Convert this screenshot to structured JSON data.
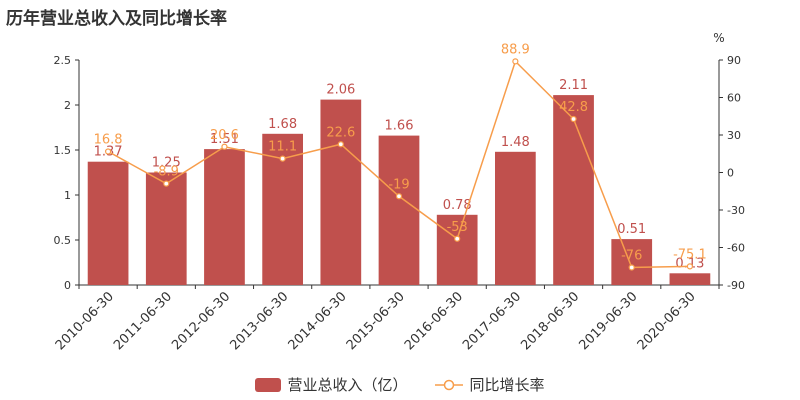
{
  "title": "历年营业总收入及同比增长率",
  "colors": {
    "bar": "#c0504d",
    "line": "#f79d4b",
    "axis": "#333333",
    "grid": "#e8e8e8"
  },
  "legend": {
    "bar_label": "营业总收入（亿）",
    "line_label": "同比增长率"
  },
  "chart_data": {
    "type": "bar",
    "categories": [
      "2010-06-30",
      "2011-06-30",
      "2012-06-30",
      "2013-06-30",
      "2014-06-30",
      "2015-06-30",
      "2016-06-30",
      "2017-06-30",
      "2018-06-30",
      "2019-06-30",
      "2020-06-30"
    ],
    "series": [
      {
        "name": "营业总收入（亿）",
        "type": "bar",
        "axis": "left",
        "values": [
          1.37,
          1.25,
          1.51,
          1.68,
          2.06,
          1.66,
          0.78,
          1.48,
          2.11,
          0.51,
          0.13
        ],
        "labels": [
          "1.37",
          "1.25",
          "1.51",
          "1.68",
          "2.06",
          "1.66",
          "0.78",
          "1.48",
          "2.11",
          "0.51",
          "0.13"
        ]
      },
      {
        "name": "同比增长率",
        "type": "line",
        "axis": "right",
        "values": [
          16.8,
          -8.9,
          20.6,
          11.1,
          22.6,
          -19,
          -53,
          88.9,
          42.8,
          -76,
          -75.1
        ],
        "labels": [
          "16.8",
          "-8.9",
          "20.6",
          "11.1",
          "22.6",
          "-19",
          "-53",
          "88.9",
          "42.8",
          "-76",
          "-75.1"
        ]
      }
    ],
    "y_left": {
      "min": 0,
      "max": 2.5,
      "ticks": [
        "0",
        "0.5",
        "1",
        "1.5",
        "2",
        "2.5"
      ]
    },
    "y_right": {
      "min": -90,
      "max": 90,
      "unit": "%",
      "ticks": [
        "-90",
        "-60",
        "-30",
        "0",
        "30",
        "60",
        "90"
      ]
    },
    "legend_position": "bottom-center",
    "grid": false
  }
}
